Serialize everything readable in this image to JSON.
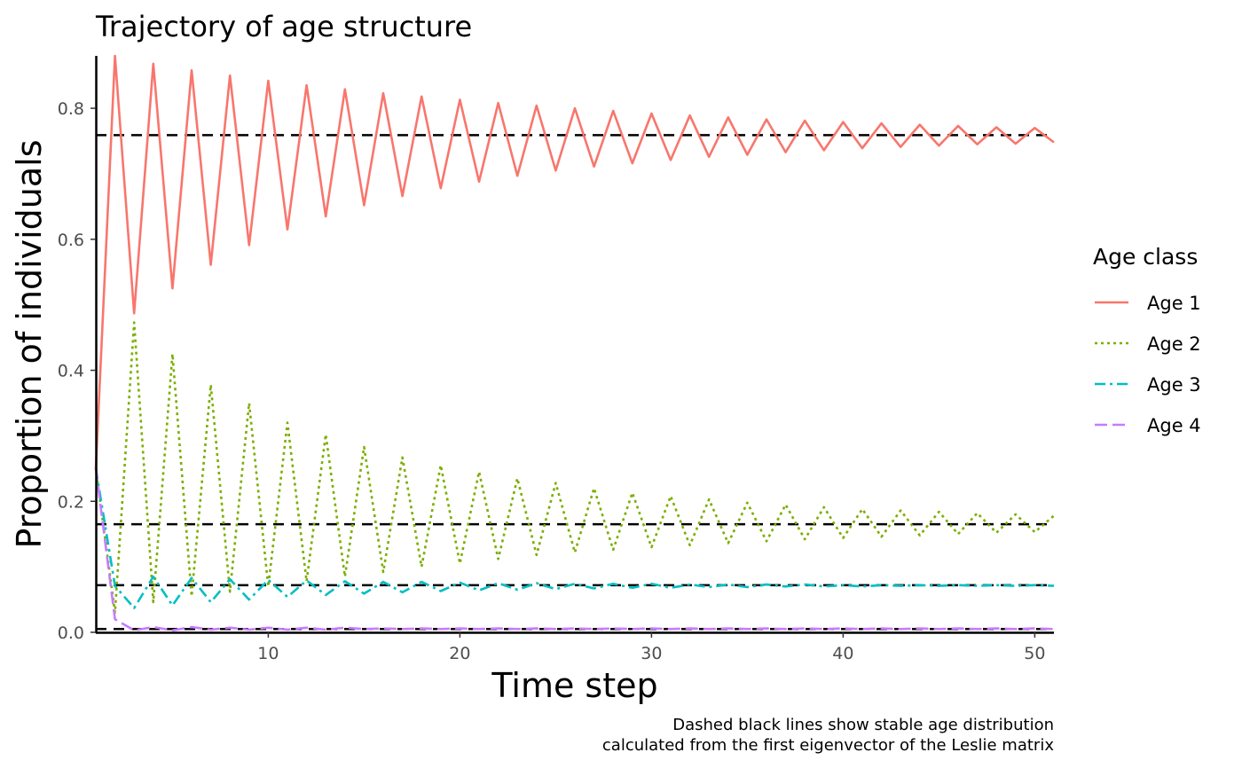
{
  "chart_data": {
    "type": "line",
    "title": "Trajectory of age structure",
    "xlabel": "Time step",
    "ylabel": "Proportion of individuals",
    "caption": [
      "Dashed black lines show stable age distribution",
      "calculated from the first eigenvector of the Leslie matrix"
    ],
    "xlim": [
      1,
      51
    ],
    "ylim": [
      0,
      0.88
    ],
    "x_ticks": [
      10,
      20,
      30,
      40,
      50
    ],
    "y_ticks": [
      0.0,
      0.2,
      0.4,
      0.6,
      0.8
    ],
    "x_tick_labels": [
      "10",
      "20",
      "30",
      "40",
      "50"
    ],
    "y_tick_labels": [
      "0.0",
      "0.2",
      "0.4",
      "0.6",
      "0.8"
    ],
    "grid": false,
    "legend": {
      "title": "Age class",
      "position": "right"
    },
    "x": [
      1,
      2,
      3,
      4,
      5,
      6,
      7,
      8,
      9,
      10,
      11,
      12,
      13,
      14,
      15,
      16,
      17,
      18,
      19,
      20,
      21,
      22,
      23,
      24,
      25,
      26,
      27,
      28,
      29,
      30,
      31,
      32,
      33,
      34,
      35,
      36,
      37,
      38,
      39,
      40,
      41,
      42,
      43,
      44,
      45,
      46,
      47,
      48,
      49,
      50,
      51
    ],
    "series": [
      {
        "name": "Age 1",
        "color": "#F8766D",
        "dash": "solid",
        "values": [
          0.25,
          0.88,
          0.487,
          0.868,
          0.525,
          0.858,
          0.561,
          0.85,
          0.591,
          0.842,
          0.615,
          0.835,
          0.635,
          0.829,
          0.652,
          0.823,
          0.666,
          0.818,
          0.678,
          0.813,
          0.688,
          0.808,
          0.697,
          0.804,
          0.705,
          0.8,
          0.711,
          0.796,
          0.716,
          0.792,
          0.721,
          0.789,
          0.726,
          0.786,
          0.729,
          0.783,
          0.733,
          0.781,
          0.736,
          0.779,
          0.739,
          0.777,
          0.741,
          0.775,
          0.743,
          0.773,
          0.745,
          0.771,
          0.746,
          0.77,
          0.748
        ]
      },
      {
        "name": "Age 2",
        "color": "#7CAE00",
        "dash": "dotted",
        "values": [
          0.25,
          0.03,
          0.473,
          0.046,
          0.425,
          0.055,
          0.378,
          0.062,
          0.35,
          0.07,
          0.32,
          0.078,
          0.302,
          0.085,
          0.283,
          0.092,
          0.267,
          0.1,
          0.255,
          0.105,
          0.245,
          0.112,
          0.235,
          0.118,
          0.228,
          0.122,
          0.22,
          0.126,
          0.213,
          0.13,
          0.208,
          0.133,
          0.203,
          0.136,
          0.198,
          0.139,
          0.195,
          0.142,
          0.191,
          0.144,
          0.188,
          0.146,
          0.186,
          0.148,
          0.184,
          0.15,
          0.182,
          0.152,
          0.18,
          0.153,
          0.178
        ]
      },
      {
        "name": "Age 3",
        "color": "#00BFC4",
        "dash": "dashdot",
        "values": [
          0.25,
          0.071,
          0.037,
          0.085,
          0.041,
          0.083,
          0.046,
          0.081,
          0.05,
          0.08,
          0.054,
          0.079,
          0.057,
          0.078,
          0.059,
          0.077,
          0.061,
          0.077,
          0.063,
          0.076,
          0.064,
          0.075,
          0.065,
          0.075,
          0.066,
          0.074,
          0.067,
          0.074,
          0.068,
          0.074,
          0.068,
          0.073,
          0.069,
          0.073,
          0.069,
          0.073,
          0.07,
          0.073,
          0.07,
          0.072,
          0.07,
          0.072,
          0.071,
          0.072,
          0.071,
          0.072,
          0.071,
          0.072,
          0.071,
          0.072,
          0.071
        ]
      },
      {
        "name": "Age 4",
        "color": "#C77CFF",
        "dash": "longdash",
        "values": [
          0.25,
          0.02,
          0.003,
          0.008,
          0.003,
          0.008,
          0.004,
          0.007,
          0.004,
          0.007,
          0.004,
          0.007,
          0.004,
          0.007,
          0.005,
          0.006,
          0.005,
          0.006,
          0.005,
          0.006,
          0.005,
          0.006,
          0.005,
          0.006,
          0.005,
          0.006,
          0.005,
          0.006,
          0.005,
          0.006,
          0.005,
          0.006,
          0.005,
          0.006,
          0.005,
          0.006,
          0.005,
          0.006,
          0.005,
          0.006,
          0.005,
          0.006,
          0.005,
          0.006,
          0.005,
          0.006,
          0.005,
          0.006,
          0.005,
          0.006,
          0.005
        ]
      }
    ],
    "reference_lines": [
      {
        "y": 0.759,
        "color": "#000000",
        "dash": "dashed"
      },
      {
        "y": 0.165,
        "color": "#000000",
        "dash": "dashed"
      },
      {
        "y": 0.072,
        "color": "#000000",
        "dash": "dashed"
      },
      {
        "y": 0.005,
        "color": "#000000",
        "dash": "dashed"
      }
    ]
  }
}
